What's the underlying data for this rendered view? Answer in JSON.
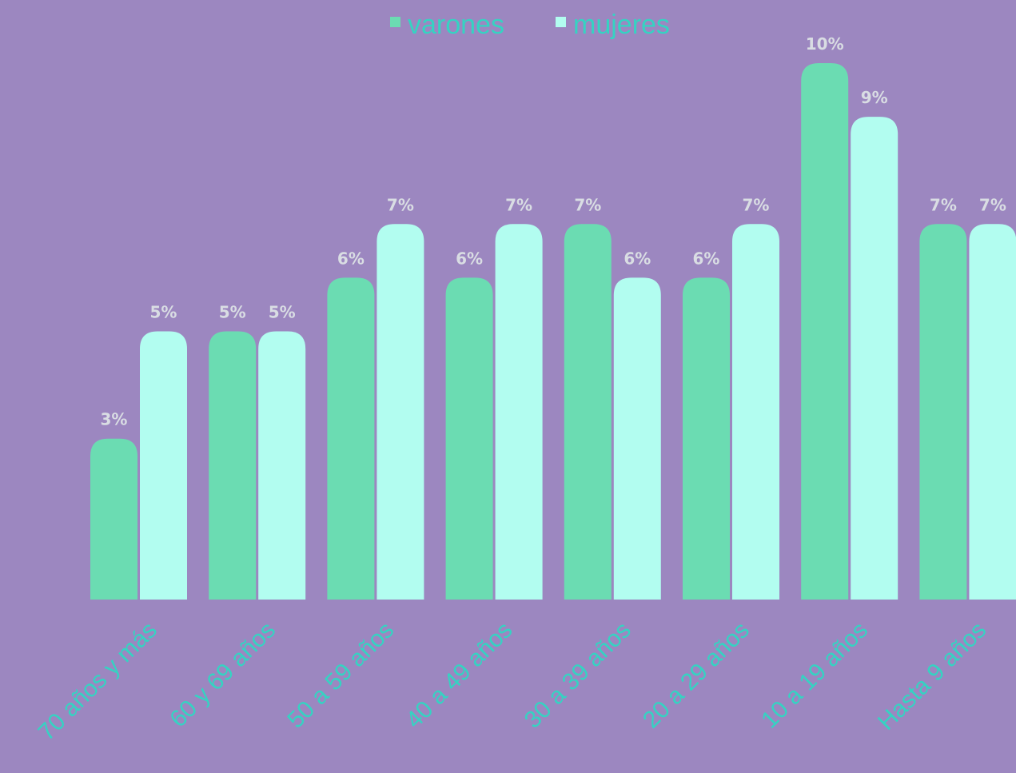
{
  "chart_data": {
    "type": "bar",
    "categories": [
      "70 años y más",
      "60 y 69 años",
      "50 a 59 años",
      "40 a 49 años",
      "30 a 39 años",
      "20 a 29 años",
      "10 a 19 años",
      "Hasta 9 años"
    ],
    "series": [
      {
        "name": "varones",
        "color": "#6bdcb2",
        "values": [
          3,
          5,
          6,
          6,
          7,
          6,
          10,
          7
        ],
        "value_labels": [
          "3%",
          "5%",
          "6%",
          "6%",
          "7%",
          "6%",
          "10%",
          "7%"
        ]
      },
      {
        "name": "mujeres",
        "color": "#b2fdf0",
        "values": [
          5,
          5,
          7,
          7,
          6,
          7,
          9,
          7
        ],
        "value_labels": [
          "5%",
          "5%",
          "7%",
          "7%",
          "6%",
          "7%",
          "9%",
          "7%"
        ]
      }
    ],
    "ylim": [
      0,
      10
    ],
    "legend": "top"
  }
}
